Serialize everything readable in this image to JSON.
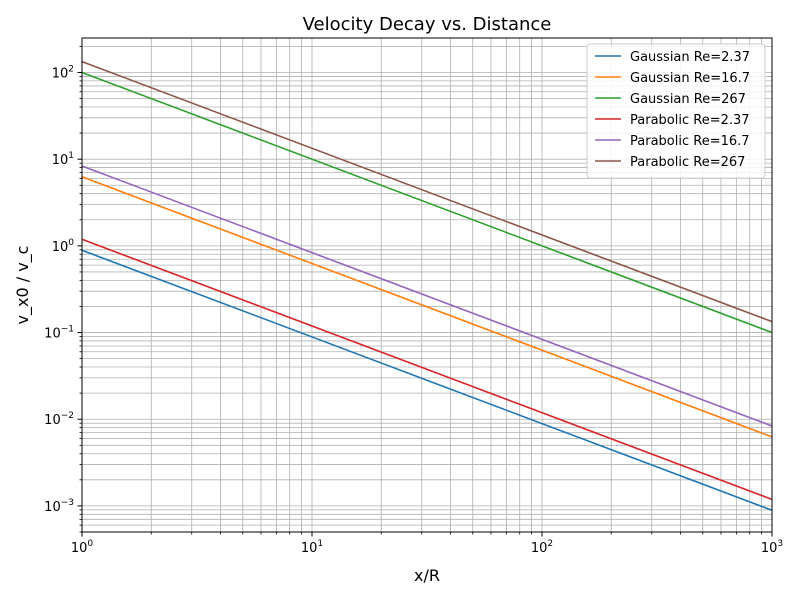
{
  "chart_data": {
    "type": "line",
    "title": "Velocity Decay vs. Distance",
    "xlabel": "x/R",
    "ylabel": "v_x0 / v_c",
    "xscale": "log",
    "yscale": "log",
    "xlim": [
      1,
      1000
    ],
    "ylim": [
      0.0005,
      250
    ],
    "grid": "both (major and minor)",
    "legend_position": "upper right",
    "x_ticks": [
      {
        "base": "10",
        "exp": "0",
        "value": 1
      },
      {
        "base": "10",
        "exp": "1",
        "value": 10
      },
      {
        "base": "10",
        "exp": "2",
        "value": 100
      },
      {
        "base": "10",
        "exp": "3",
        "value": 1000
      }
    ],
    "y_ticks": [
      {
        "base": "10",
        "exp": "−3",
        "value": 0.001
      },
      {
        "base": "10",
        "exp": "−2",
        "value": 0.01
      },
      {
        "base": "10",
        "exp": "−1",
        "value": 0.1
      },
      {
        "base": "10",
        "exp": "0",
        "value": 1
      },
      {
        "base": "10",
        "exp": "1",
        "value": 10
      },
      {
        "base": "10",
        "exp": "2",
        "value": 100
      }
    ],
    "series": [
      {
        "name": "Gaussian Re=2.37",
        "color": "#1f77b4",
        "x": [
          1,
          1000
        ],
        "y": [
          0.89,
          0.00089
        ]
      },
      {
        "name": "Gaussian Re=16.7",
        "color": "#ff7f0e",
        "x": [
          1,
          1000
        ],
        "y": [
          6.26,
          0.00626
        ]
      },
      {
        "name": "Gaussian Re=267",
        "color": "#2ca02c",
        "x": [
          1,
          1000
        ],
        "y": [
          100,
          0.1
        ]
      },
      {
        "name": "Parabolic Re=2.37",
        "color": "#d62728",
        "x": [
          1,
          1000
        ],
        "y": [
          1.19,
          0.00119
        ]
      },
      {
        "name": "Parabolic Re=16.7",
        "color": "#9467bd",
        "x": [
          1,
          1000
        ],
        "y": [
          8.35,
          0.00835
        ]
      },
      {
        "name": "Parabolic Re=267",
        "color": "#8c564b",
        "x": [
          1,
          1000
        ],
        "y": [
          133.5,
          0.1335
        ]
      }
    ]
  }
}
